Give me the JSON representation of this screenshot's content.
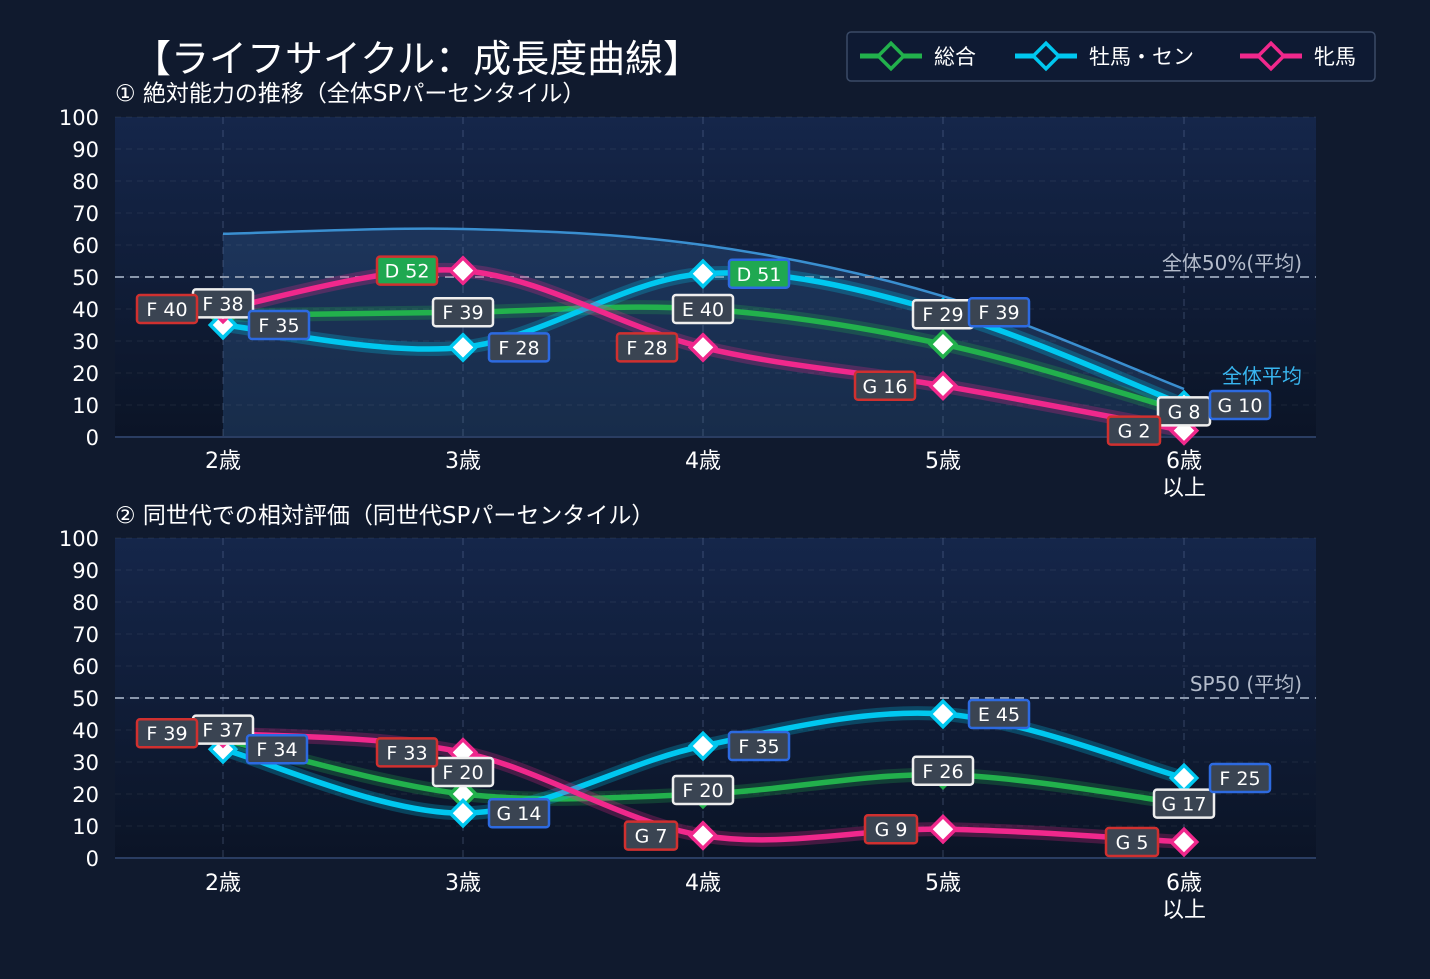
{
  "title": "【ライフサイクル：成長度曲線】",
  "legend": [
    {
      "name": "総合",
      "color": "#22b14c"
    },
    {
      "name": "牡馬・セン",
      "color": "#00c8f0"
    },
    {
      "name": "牝馬",
      "color": "#f0288c"
    }
  ],
  "chart_data": [
    {
      "type": "line",
      "title": "① 絶対能力の推移（全体SPパーセンタイル）",
      "categories": [
        "2歳",
        "3歳",
        "4歳",
        "5歳",
        "6歳\n以上"
      ],
      "ylim": [
        0,
        100
      ],
      "yticks": [
        0,
        10,
        20,
        30,
        40,
        50,
        60,
        70,
        80,
        90,
        100
      ],
      "grid": true,
      "reference_line": {
        "value": 50,
        "label": "全体50%(平均)"
      },
      "average_curve": {
        "label": "全体平均",
        "values": [
          63.5,
          65,
          60,
          44,
          15
        ]
      },
      "series": [
        {
          "name": "総合",
          "values": [
            38,
            39,
            40,
            29,
            8
          ],
          "labels": [
            "F 38",
            "F 39",
            "E 40",
            "F 29",
            "G 8"
          ]
        },
        {
          "name": "牡馬・セン",
          "values": [
            35,
            28,
            51,
            39,
            10
          ],
          "labels": [
            "F 35",
            "F 28",
            "D 51",
            "F 39",
            "G 10"
          ]
        },
        {
          "name": "牝馬",
          "values": [
            40,
            52,
            28,
            16,
            2
          ],
          "labels": [
            "F 40",
            "D 52",
            "F 28",
            "G 16",
            "G 2"
          ]
        }
      ]
    },
    {
      "type": "line",
      "title": "② 同世代での相対評価（同世代SPパーセンタイル）",
      "categories": [
        "2歳",
        "3歳",
        "4歳",
        "5歳",
        "6歳\n以上"
      ],
      "ylim": [
        0,
        100
      ],
      "yticks": [
        0,
        10,
        20,
        30,
        40,
        50,
        60,
        70,
        80,
        90,
        100
      ],
      "grid": true,
      "reference_line": {
        "value": 50,
        "label": "SP50 (平均)"
      },
      "series": [
        {
          "name": "総合",
          "values": [
            37,
            20,
            20,
            26,
            17
          ],
          "labels": [
            "F 37",
            "F 20",
            "F 20",
            "F 26",
            "G 17"
          ]
        },
        {
          "name": "牡馬・セン",
          "values": [
            34,
            14,
            35,
            45,
            25
          ],
          "labels": [
            "F 34",
            "G 14",
            "F 35",
            "E 45",
            "F 25"
          ]
        },
        {
          "name": "牝馬",
          "values": [
            39,
            33,
            7,
            9,
            5
          ],
          "labels": [
            "F 39",
            "F 33",
            "G 7",
            "G 9",
            "G 5"
          ]
        }
      ]
    }
  ]
}
